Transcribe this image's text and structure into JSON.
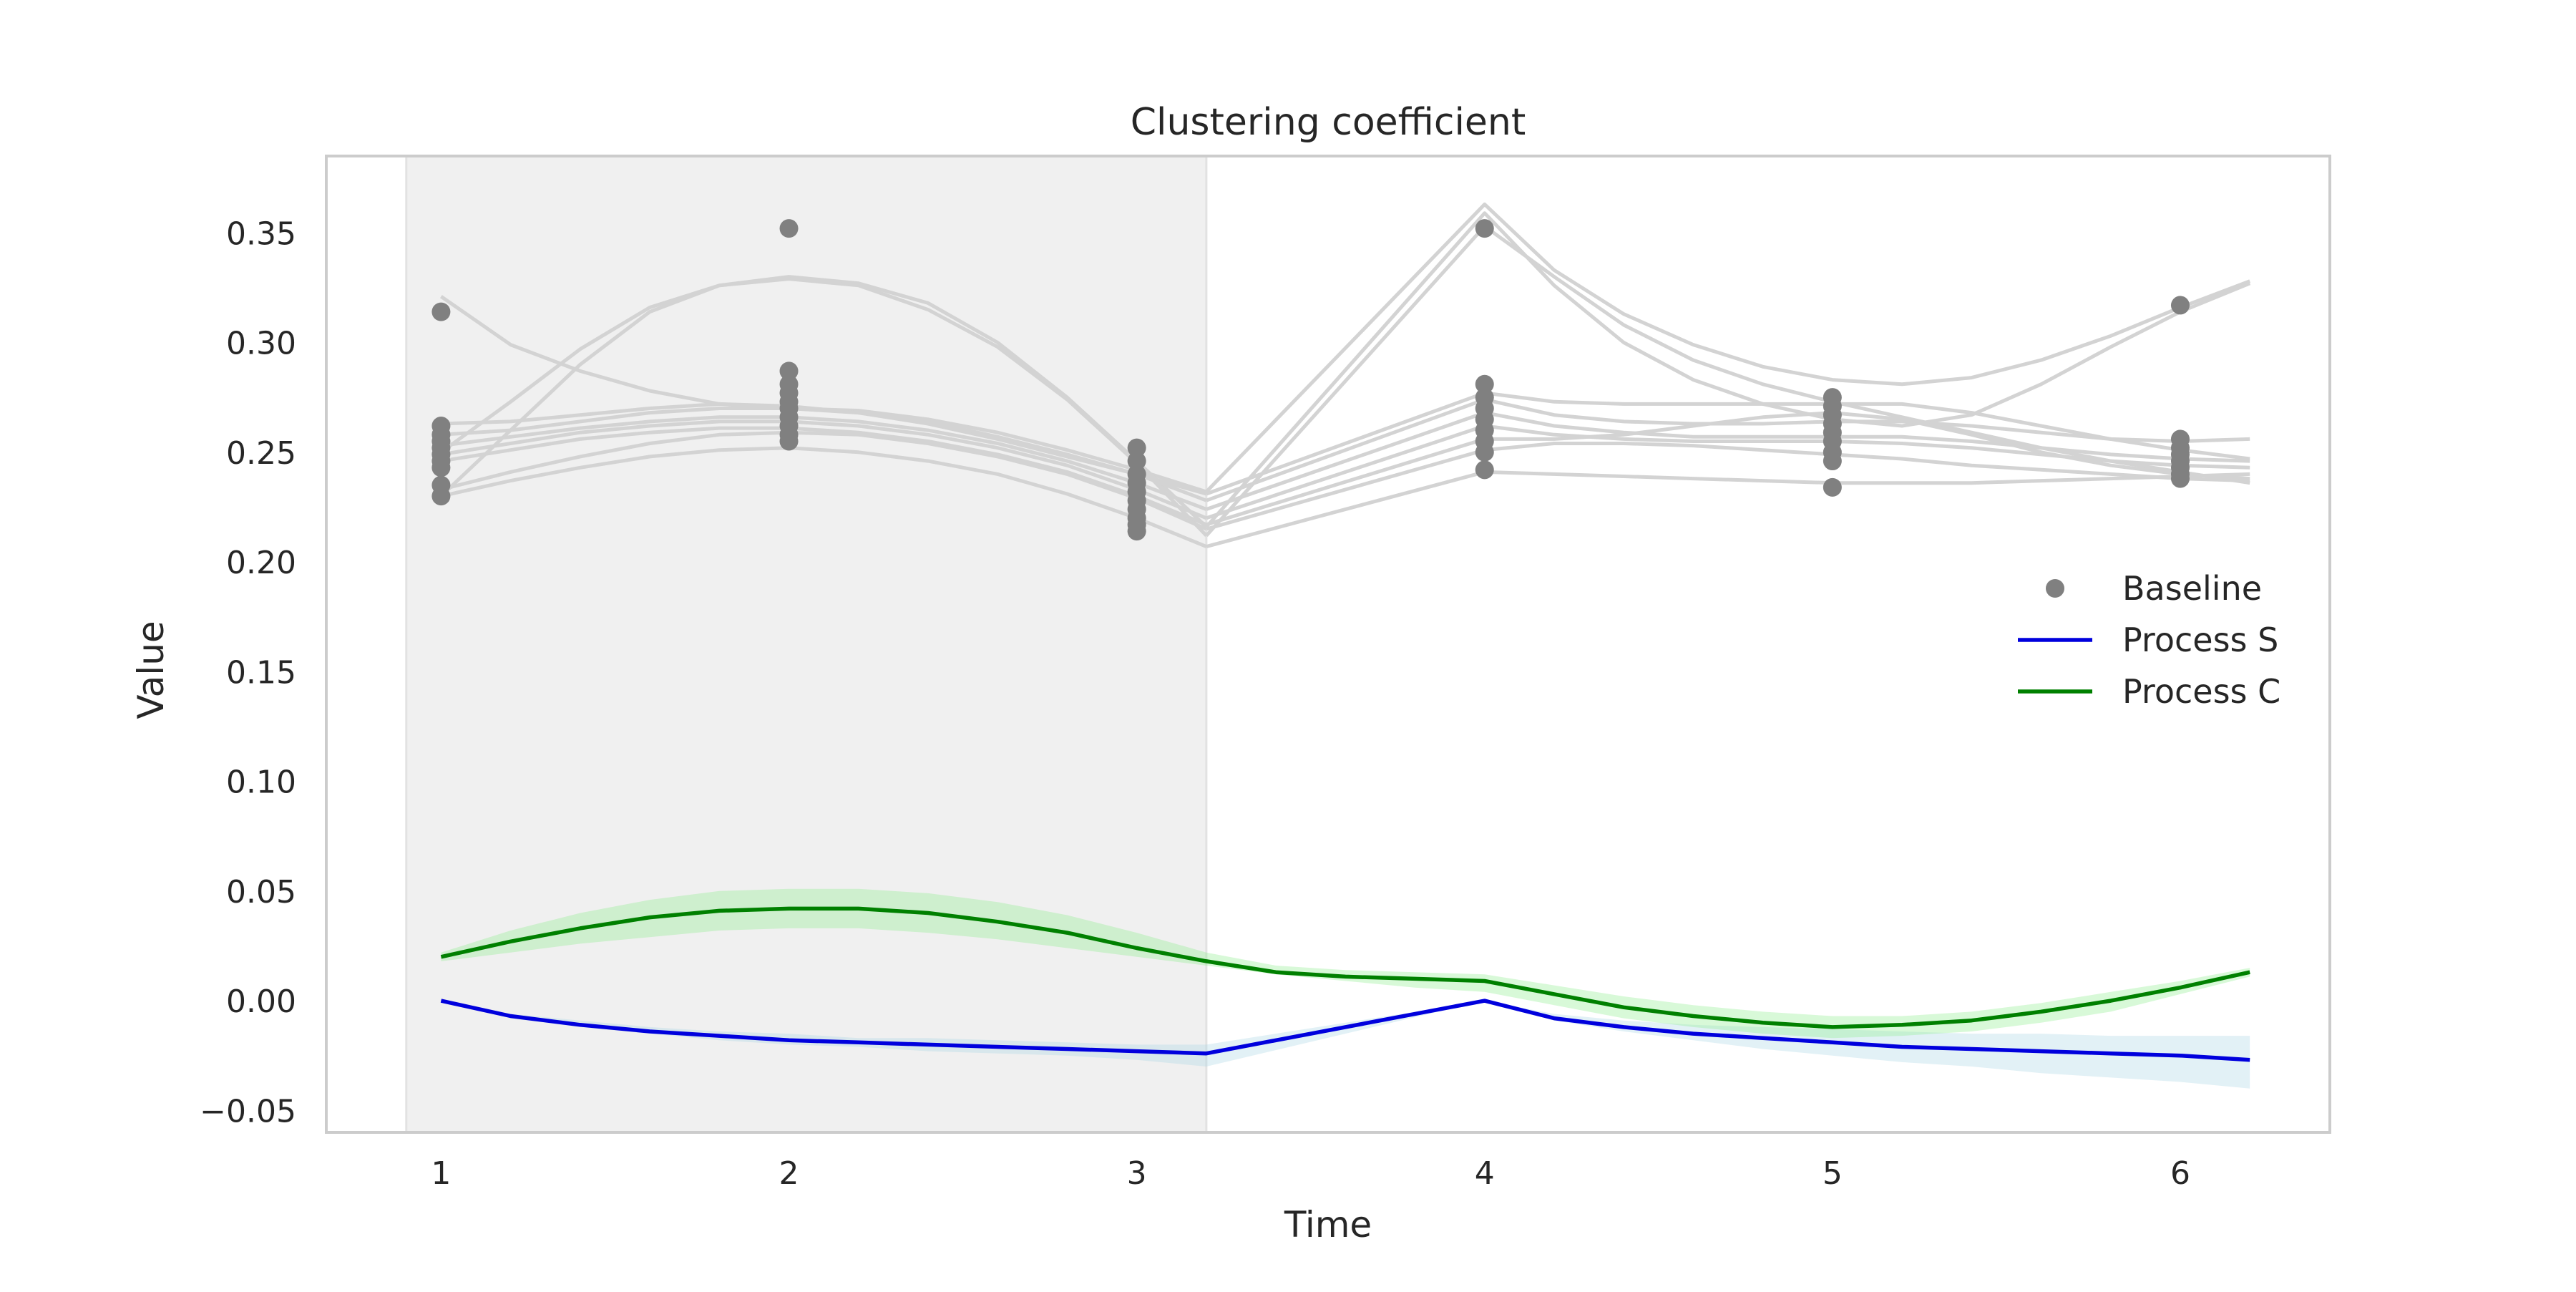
{
  "chart_data": {
    "type": "line",
    "title": "Clustering coefficient",
    "xlabel": "Time",
    "ylabel": "Value",
    "xlim": [
      0.67,
      6.43
    ],
    "ylim": [
      -0.06,
      0.385
    ],
    "xticks": [
      1,
      2,
      3,
      4,
      5,
      6
    ],
    "xtick_labels": [
      "1",
      "2",
      "3",
      "4",
      "5",
      "6"
    ],
    "yticks": [
      -0.05,
      0.0,
      0.05,
      0.1,
      0.15,
      0.2,
      0.25,
      0.3,
      0.35
    ],
    "ytick_labels": [
      "−0.05",
      "0.00",
      "0.05",
      "0.10",
      "0.15",
      "0.20",
      "0.25",
      "0.30",
      "0.35"
    ],
    "grid": false,
    "legend_position": "center-right",
    "shaded_region": {
      "x": [
        0.9,
        3.2
      ],
      "color": "#f0f0f0"
    },
    "colors": {
      "baseline": "#808080",
      "traces": "#d3d3d3",
      "process_s": "#0000dd",
      "process_s_band": "#add8e6",
      "process_c": "#008000",
      "process_c_band": "#90ee90"
    },
    "legend": [
      {
        "label": "Baseline",
        "marker": "dot",
        "color": "#808080"
      },
      {
        "label": "Process S",
        "marker": "line",
        "color": "#0000dd"
      },
      {
        "label": "Process C",
        "marker": "line",
        "color": "#008000"
      }
    ],
    "baseline_points": [
      {
        "x": 1,
        "y": [
          0.314,
          0.262,
          0.258,
          0.255,
          0.252,
          0.249,
          0.246,
          0.243,
          0.235,
          0.23
        ]
      },
      {
        "x": 2,
        "y": [
          0.352,
          0.287,
          0.281,
          0.277,
          0.273,
          0.27,
          0.266,
          0.262,
          0.258,
          0.255
        ]
      },
      {
        "x": 3,
        "y": [
          0.252,
          0.246,
          0.24,
          0.236,
          0.232,
          0.228,
          0.224,
          0.22,
          0.217,
          0.214
        ]
      },
      {
        "x": 4,
        "y": [
          0.352,
          0.281,
          0.275,
          0.27,
          0.265,
          0.26,
          0.255,
          0.25,
          0.242
        ]
      },
      {
        "x": 5,
        "y": [
          0.275,
          0.271,
          0.267,
          0.263,
          0.259,
          0.255,
          0.25,
          0.246,
          0.234
        ]
      },
      {
        "x": 6,
        "y": [
          0.317,
          0.256,
          0.252,
          0.249,
          0.246,
          0.243,
          0.24,
          0.238
        ]
      }
    ],
    "trace_segments": [
      {
        "x": [
          1,
          1.2,
          1.4,
          1.6,
          1.8,
          2,
          2.2,
          2.4,
          2.6,
          2.8,
          3,
          3.2
        ],
        "ys": [
          [
            0.321,
            0.299,
            0.287,
            0.278,
            0.272,
            0.27,
            0.269,
            0.265,
            0.259,
            0.251,
            0.242,
            0.232
          ],
          [
            0.23,
            0.26,
            0.29,
            0.314,
            0.326,
            0.33,
            0.327,
            0.318,
            0.3,
            0.275,
            0.246,
            0.216
          ],
          [
            0.25,
            0.273,
            0.297,
            0.316,
            0.326,
            0.329,
            0.326,
            0.315,
            0.298,
            0.274,
            0.245,
            0.212
          ],
          [
            0.263,
            0.264,
            0.267,
            0.27,
            0.272,
            0.271,
            0.268,
            0.263,
            0.256,
            0.248,
            0.24,
            0.231
          ],
          [
            0.258,
            0.26,
            0.264,
            0.268,
            0.27,
            0.27,
            0.268,
            0.264,
            0.257,
            0.249,
            0.24,
            0.228
          ],
          [
            0.253,
            0.257,
            0.261,
            0.264,
            0.266,
            0.266,
            0.264,
            0.26,
            0.254,
            0.246,
            0.236,
            0.224
          ],
          [
            0.249,
            0.254,
            0.259,
            0.262,
            0.264,
            0.264,
            0.262,
            0.258,
            0.252,
            0.244,
            0.233,
            0.22
          ],
          [
            0.246,
            0.251,
            0.256,
            0.259,
            0.261,
            0.261,
            0.259,
            0.255,
            0.249,
            0.241,
            0.23,
            0.217
          ],
          [
            0.233,
            0.241,
            0.248,
            0.254,
            0.258,
            0.259,
            0.258,
            0.254,
            0.248,
            0.24,
            0.229,
            0.215
          ],
          [
            0.23,
            0.237,
            0.243,
            0.248,
            0.251,
            0.252,
            0.25,
            0.246,
            0.24,
            0.231,
            0.22,
            0.207
          ]
        ]
      },
      {
        "x": [
          3.2,
          4,
          4.2,
          4.4,
          4.6,
          4.8,
          5,
          5.2,
          5.4,
          5.6,
          5.8,
          6,
          6.2
        ],
        "ys": [
          [
            0.232,
            0.363,
            0.333,
            0.313,
            0.299,
            0.289,
            0.283,
            0.281,
            0.284,
            0.292,
            0.303,
            0.316,
            0.328
          ],
          [
            0.216,
            0.359,
            0.326,
            0.3,
            0.283,
            0.272,
            0.265,
            0.262,
            0.267,
            0.281,
            0.298,
            0.314,
            0.327
          ],
          [
            0.212,
            0.353,
            0.33,
            0.308,
            0.292,
            0.281,
            0.273,
            0.266,
            0.259,
            0.252,
            0.246,
            0.241,
            0.236
          ],
          [
            0.231,
            0.277,
            0.273,
            0.272,
            0.272,
            0.272,
            0.272,
            0.272,
            0.268,
            0.262,
            0.256,
            0.251,
            0.247
          ],
          [
            0.228,
            0.274,
            0.267,
            0.264,
            0.263,
            0.263,
            0.264,
            0.264,
            0.262,
            0.259,
            0.256,
            0.255,
            0.256
          ],
          [
            0.224,
            0.268,
            0.262,
            0.259,
            0.257,
            0.257,
            0.257,
            0.257,
            0.255,
            0.252,
            0.249,
            0.247,
            0.246
          ],
          [
            0.22,
            0.262,
            0.258,
            0.256,
            0.255,
            0.255,
            0.255,
            0.254,
            0.252,
            0.249,
            0.246,
            0.244,
            0.243
          ],
          [
            0.217,
            0.256,
            0.256,
            0.258,
            0.262,
            0.266,
            0.268,
            0.265,
            0.258,
            0.25,
            0.244,
            0.24,
            0.238
          ],
          [
            0.215,
            0.251,
            0.254,
            0.254,
            0.253,
            0.251,
            0.249,
            0.247,
            0.244,
            0.242,
            0.24,
            0.238,
            0.237
          ],
          [
            0.207,
            0.241,
            0.24,
            0.239,
            0.238,
            0.237,
            0.236,
            0.236,
            0.236,
            0.237,
            0.238,
            0.239,
            0.24
          ]
        ]
      }
    ],
    "series": [
      {
        "name": "Process S",
        "x": [
          1,
          1.2,
          1.4,
          1.6,
          1.8,
          2,
          2.2,
          2.4,
          2.6,
          2.8,
          3,
          3.2,
          4,
          4.2,
          4.4,
          4.6,
          4.8,
          5,
          5.2,
          5.4,
          5.6,
          5.8,
          6,
          6.2
        ],
        "y": [
          0.0,
          -0.007,
          -0.011,
          -0.014,
          -0.016,
          -0.018,
          -0.019,
          -0.02,
          -0.021,
          -0.022,
          -0.023,
          -0.024,
          0.0,
          -0.008,
          -0.012,
          -0.015,
          -0.017,
          -0.019,
          -0.021,
          -0.022,
          -0.023,
          -0.024,
          -0.025,
          -0.027
        ],
        "lower": [
          0.0,
          -0.008,
          -0.012,
          -0.015,
          -0.018,
          -0.02,
          -0.021,
          -0.023,
          -0.024,
          -0.025,
          -0.027,
          -0.03,
          0.0,
          -0.009,
          -0.014,
          -0.018,
          -0.022,
          -0.025,
          -0.028,
          -0.03,
          -0.033,
          -0.035,
          -0.037,
          -0.04
        ],
        "upper": [
          0.0,
          -0.006,
          -0.009,
          -0.012,
          -0.014,
          -0.015,
          -0.017,
          -0.017,
          -0.018,
          -0.019,
          -0.02,
          -0.02,
          0.0,
          -0.006,
          -0.009,
          -0.011,
          -0.012,
          -0.013,
          -0.014,
          -0.015,
          -0.015,
          -0.016,
          -0.016,
          -0.016
        ]
      },
      {
        "name": "Process C",
        "x": [
          1,
          1.2,
          1.4,
          1.6,
          1.8,
          2,
          2.2,
          2.4,
          2.6,
          2.8,
          3,
          3.2,
          3.4,
          3.6,
          3.8,
          4,
          4.2,
          4.4,
          4.6,
          4.8,
          5,
          5.2,
          5.4,
          5.6,
          5.8,
          6,
          6.2
        ],
        "y": [
          0.02,
          0.027,
          0.033,
          0.038,
          0.041,
          0.042,
          0.042,
          0.04,
          0.036,
          0.031,
          0.024,
          0.018,
          0.013,
          0.011,
          0.01,
          0.009,
          0.003,
          -0.003,
          -0.007,
          -0.01,
          -0.012,
          -0.011,
          -0.009,
          -0.005,
          0.0,
          0.006,
          0.013
        ],
        "lower": [
          0.018,
          0.022,
          0.026,
          0.029,
          0.032,
          0.033,
          0.033,
          0.031,
          0.028,
          0.024,
          0.02,
          0.016,
          0.012,
          0.009,
          0.006,
          0.004,
          -0.002,
          -0.008,
          -0.012,
          -0.015,
          -0.017,
          -0.016,
          -0.014,
          -0.01,
          -0.005,
          0.003,
          0.011
        ],
        "upper": [
          0.022,
          0.032,
          0.04,
          0.046,
          0.05,
          0.051,
          0.051,
          0.049,
          0.045,
          0.039,
          0.031,
          0.022,
          0.016,
          0.014,
          0.013,
          0.012,
          0.007,
          0.002,
          -0.002,
          -0.005,
          -0.007,
          -0.007,
          -0.005,
          -0.001,
          0.004,
          0.009,
          0.015
        ]
      }
    ]
  }
}
